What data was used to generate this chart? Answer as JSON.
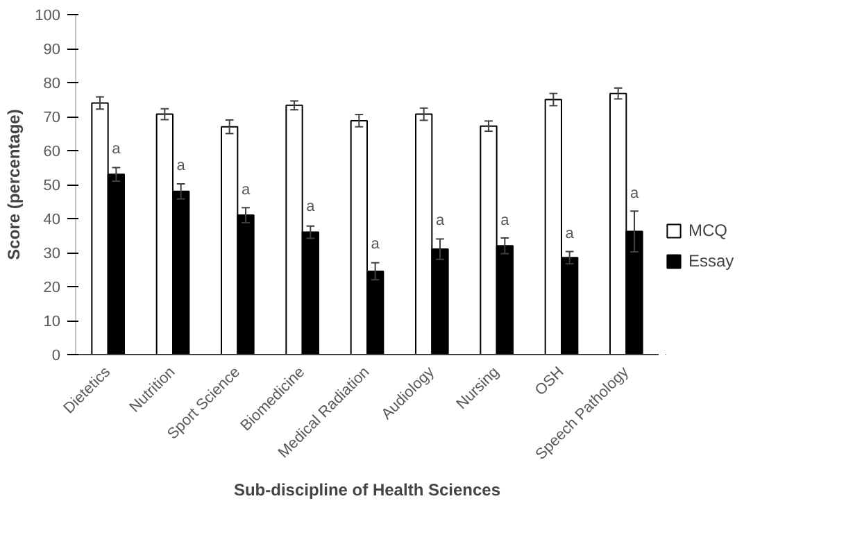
{
  "chart_data": {
    "type": "bar",
    "xlabel": "Sub-discipline of Health Sciences",
    "ylabel": "Score (percentage)",
    "categories": [
      "Dietetics",
      "Nutrition",
      "Sport Science",
      "Biomedicine",
      "Medical Radiation",
      "Audiology",
      "Nursing",
      "OSH",
      "Speech Pathology"
    ],
    "series": [
      {
        "name": "MCQ",
        "color": "#ffffff",
        "values": [
          74,
          70.7,
          67,
          73.3,
          68.8,
          70.7,
          67.2,
          75,
          76.8
        ],
        "errors": [
          1.8,
          1.6,
          2,
          1.3,
          1.8,
          1.8,
          1.5,
          1.8,
          1.6
        ]
      },
      {
        "name": "Essay",
        "color": "#000000",
        "values": [
          53,
          48,
          41,
          36,
          24.5,
          31,
          32,
          28.5,
          36.2
        ],
        "errors": [
          2,
          2.2,
          2.2,
          1.8,
          2.5,
          3,
          2.3,
          1.8,
          6
        ]
      }
    ],
    "ylim": [
      0,
      100
    ],
    "yticks": [
      0,
      10,
      20,
      30,
      40,
      50,
      60,
      70,
      80,
      90,
      100
    ],
    "grid": false,
    "legend": "right",
    "annotations": [
      {
        "text": "a",
        "x": "Dietetics",
        "y": 58
      },
      {
        "text": "a",
        "x": "Nutrition",
        "y": 53
      },
      {
        "text": "a",
        "x": "Sport Science",
        "y": 46
      },
      {
        "text": "a",
        "x": "Biomedicine",
        "y": 41
      },
      {
        "text": "a",
        "x": "Medical Radiation",
        "y": 30
      },
      {
        "text": "a",
        "x": "Audiology",
        "y": 37
      },
      {
        "text": "a",
        "x": "Nursing",
        "y": 37
      },
      {
        "text": "a",
        "x": "OSH",
        "y": 33
      },
      {
        "text": "a",
        "x": "Speech Pathology",
        "y": 45
      }
    ]
  }
}
